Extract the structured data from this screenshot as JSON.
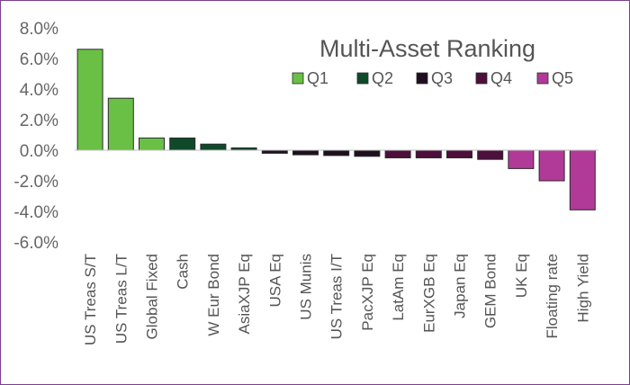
{
  "chart_data": {
    "type": "bar",
    "title": "Multi-Asset Ranking",
    "xlabel": "",
    "ylabel": "",
    "ylim": [
      -6,
      8
    ],
    "yticks": [
      8,
      6,
      4,
      2,
      0,
      -2,
      -4,
      -6
    ],
    "ytick_labels": [
      "8.0%",
      "6.0%",
      "4.0%",
      "2.0%",
      "0.0%",
      "-2.0%",
      "-4.0%",
      "-6.0%"
    ],
    "grid": false,
    "legend_position": "top-right",
    "legend": [
      {
        "name": "Q1",
        "color": "#6abf45"
      },
      {
        "name": "Q2",
        "color": "#0e4a2a"
      },
      {
        "name": "Q3",
        "color": "#1e0f1e"
      },
      {
        "name": "Q4",
        "color": "#4d0f3b"
      },
      {
        "name": "Q5",
        "color": "#b13a98"
      }
    ],
    "categories": [
      "US Treas S/T",
      "US Treas L/T",
      "Global Fixed",
      "Cash",
      "W Eur Bond",
      "AsiaXJP Eq",
      "USA Eq",
      "US Munis",
      "US Treas I/T",
      "PacXJP Eq",
      "LatAm Eq",
      "EurXGB Eq",
      "Japan Eq",
      "GEM Bond",
      "UK Eq",
      "Floating rate",
      "High Yield"
    ],
    "values": [
      6.6,
      3.4,
      0.8,
      0.8,
      0.4,
      0.15,
      -0.2,
      -0.3,
      -0.35,
      -0.4,
      -0.5,
      -0.5,
      -0.5,
      -0.6,
      -1.2,
      -2.0,
      -3.9
    ],
    "quintiles": [
      "Q1",
      "Q1",
      "Q1",
      "Q2",
      "Q2",
      "Q2",
      "Q3",
      "Q3",
      "Q3",
      "Q3",
      "Q4",
      "Q4",
      "Q4",
      "Q4",
      "Q5",
      "Q5",
      "Q5"
    ]
  }
}
